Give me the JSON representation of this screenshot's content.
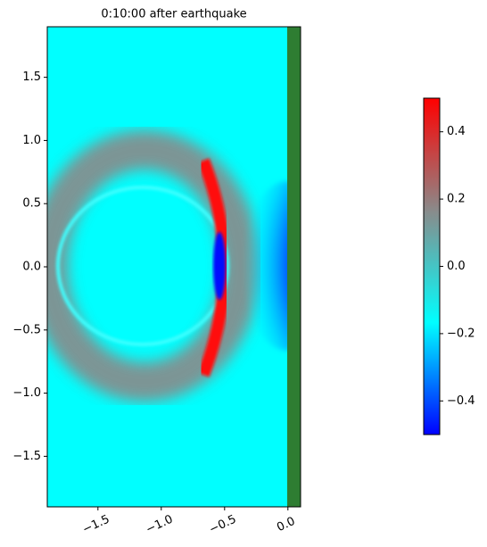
{
  "chart_data": {
    "type": "heatmap",
    "title": "0:10:00 after earthquake",
    "xlim": [
      -1.9,
      0.1
    ],
    "ylim": [
      -1.9,
      1.9
    ],
    "xticks": [
      {
        "value": -1.5,
        "label": "−1.5"
      },
      {
        "value": -1.0,
        "label": "−1.0"
      },
      {
        "value": -0.5,
        "label": "−0.5"
      },
      {
        "value": 0.0,
        "label": "0.0"
      }
    ],
    "yticks": [
      {
        "value": -1.5,
        "label": "−1.5"
      },
      {
        "value": -1.0,
        "label": "−1.0"
      },
      {
        "value": -0.5,
        "label": "−0.5"
      },
      {
        "value": 0.0,
        "label": "0.0"
      },
      0.5,
      {
        "value": 1.0,
        "label": "1.0"
      },
      1.5
    ],
    "colorbar": {
      "clim": [
        -0.5,
        0.5
      ],
      "ticks": [
        {
          "value": -0.4,
          "label": "−0.4"
        },
        {
          "value": -0.2,
          "label": "−0.2"
        },
        {
          "value": 0.0,
          "label": "0.0"
        },
        0.2,
        0.4
      ],
      "colors": [
        "#0000ff",
        "#00ffff",
        "#8a8a8a",
        "#ff0000"
      ]
    },
    "land_color": "#2e7d32"
  }
}
